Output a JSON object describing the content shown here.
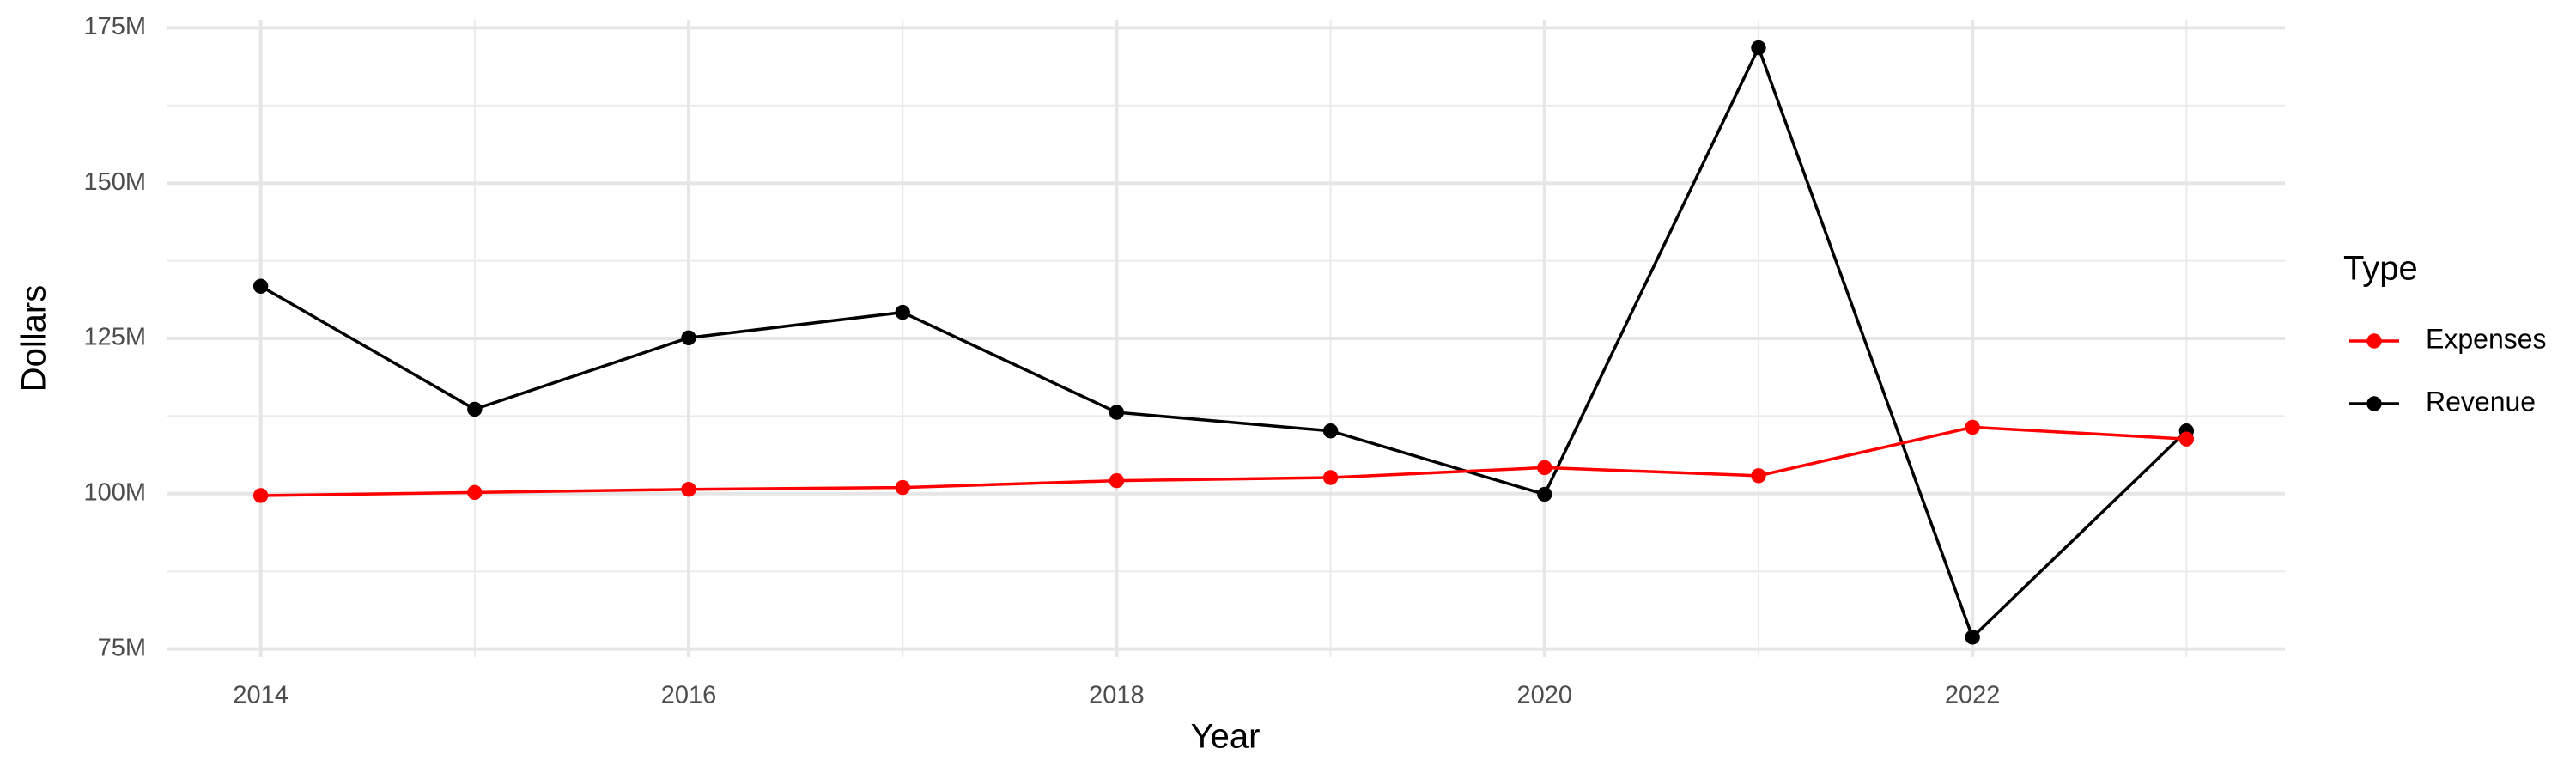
{
  "chart_data": {
    "type": "line",
    "x_label": "Year",
    "y_label": "Dollars",
    "legend_title": "Type",
    "legend_position": "right",
    "grid": true,
    "x": [
      2014,
      2015,
      2016,
      2017,
      2018,
      2019,
      2020,
      2021,
      2022,
      2023
    ],
    "series": [
      {
        "name": "Expenses",
        "color": "#ff0000",
        "values": [
          99700000,
          100200000,
          100700000,
          101000000,
          102100000,
          102600000,
          104200000,
          102900000,
          110700000,
          108800000
        ]
      },
      {
        "name": "Revenue",
        "color": "#000000",
        "values": [
          133400000,
          113600000,
          125100000,
          129200000,
          113100000,
          110100000,
          99900000,
          171800000,
          76900000,
          110100000
        ]
      }
    ],
    "xlim": [
      2013.56,
      2023.46
    ],
    "xticks": [
      2014,
      2016,
      2018,
      2020,
      2022
    ],
    "ylim": [
      73700000,
      176300000
    ],
    "yticks": [
      {
        "value": 75000000,
        "label": "75M"
      },
      {
        "value": 100000000,
        "label": "100M"
      },
      {
        "value": 125000000,
        "label": "125M"
      },
      {
        "value": 150000000,
        "label": "150M"
      },
      {
        "value": 175000000,
        "label": "175M"
      }
    ]
  }
}
